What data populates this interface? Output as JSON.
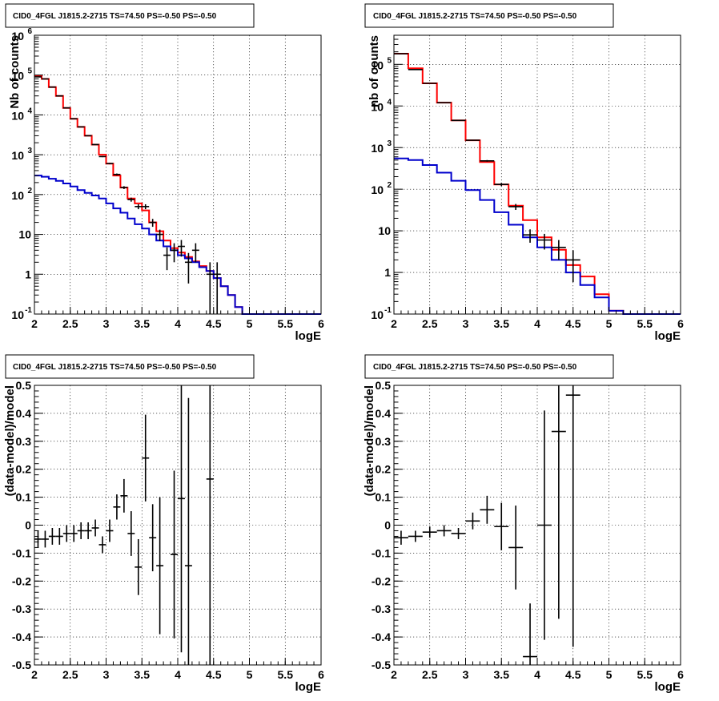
{
  "chart_data": [
    {
      "panel": "top-left",
      "type": "step",
      "title": "CID0_4FGL J1815.2-2715 TS=74.50 PS=-0.50 PS=-0.50",
      "xlabel": "logE",
      "ylabel": "Nb of counts",
      "xlim": [
        2,
        6
      ],
      "ylim": [
        0.1,
        1000000
      ],
      "yscale": "log",
      "grid": true,
      "xticks": [
        "2",
        "2.5",
        "3",
        "3.5",
        "4",
        "4.5",
        "5",
        "5.5",
        "6"
      ],
      "yticks": [
        {
          "base": "10",
          "exp": "-1"
        },
        {
          "base": "1",
          "exp": ""
        },
        {
          "base": "10",
          "exp": ""
        },
        {
          "base": "10",
          "exp": "2"
        },
        {
          "base": "10",
          "exp": "3"
        },
        {
          "base": "10",
          "exp": "4"
        },
        {
          "base": "10",
          "exp": "5"
        },
        {
          "base": "10",
          "exp": "6"
        }
      ],
      "bin_edges": [
        2.0,
        2.1,
        2.2,
        2.3,
        2.4,
        2.5,
        2.6,
        2.7,
        2.8,
        2.9,
        3.0,
        3.1,
        3.2,
        3.3,
        3.4,
        3.5,
        3.6,
        3.7,
        3.8,
        3.9,
        4.0,
        4.1,
        4.2,
        4.3,
        4.4,
        4.5,
        4.6,
        4.7,
        4.8,
        4.9,
        5.0,
        5.1,
        5.2,
        5.3,
        5.4,
        5.5,
        5.6,
        5.7,
        5.8,
        5.9,
        6.0
      ],
      "series": [
        {
          "color": "#ff0000",
          "values": [
            95000,
            80000,
            50000,
            30000,
            15000,
            8000,
            5000,
            3000,
            1800,
            1000,
            600,
            300,
            150,
            80,
            60,
            40,
            20,
            12,
            7,
            4.5,
            3.5,
            2.7,
            2.1,
            1.6,
            1.2,
            0.8,
            0.5,
            0.3,
            0.15,
            0.1,
            0.1,
            0.1,
            0.1,
            0.1,
            0.1,
            0.1,
            0.1,
            0.1,
            0.1,
            0.1
          ]
        },
        {
          "color": "#0000cc",
          "values": [
            300,
            280,
            250,
            220,
            190,
            160,
            130,
            110,
            95,
            80,
            60,
            45,
            35,
            25,
            18,
            14,
            10,
            7,
            5,
            4,
            3,
            2.5,
            2,
            1.5,
            1.2,
            0.8,
            0.5,
            0.3,
            0.15,
            0.1,
            0.1,
            0.1,
            0.1,
            0.1,
            0.1,
            0.1,
            0.1,
            0.1,
            0.1,
            0.1
          ]
        }
      ],
      "points": [
        {
          "x": 2.05,
          "y": 90000
        },
        {
          "x": 2.15,
          "y": 80000
        },
        {
          "x": 2.25,
          "y": 50000
        },
        {
          "x": 2.35,
          "y": 30000
        },
        {
          "x": 2.45,
          "y": 15000
        },
        {
          "x": 2.55,
          "y": 8000
        },
        {
          "x": 2.65,
          "y": 5000
        },
        {
          "x": 2.75,
          "y": 3000
        },
        {
          "x": 2.85,
          "y": 1800
        },
        {
          "x": 2.95,
          "y": 900
        },
        {
          "x": 3.05,
          "y": 600
        },
        {
          "x": 3.15,
          "y": 320
        },
        {
          "x": 3.25,
          "y": 150
        },
        {
          "x": 3.35,
          "y": 75
        },
        {
          "x": 3.45,
          "y": 50
        },
        {
          "x": 3.55,
          "y": 50
        },
        {
          "x": 3.65,
          "y": 20
        },
        {
          "x": 3.75,
          "y": 10
        },
        {
          "x": 3.85,
          "y": 3
        },
        {
          "x": 3.95,
          "y": 4
        },
        {
          "x": 4.05,
          "y": 5
        },
        {
          "x": 4.15,
          "y": 2
        },
        {
          "x": 4.25,
          "y": 4
        },
        {
          "x": 4.45,
          "y": 1
        },
        {
          "x": 4.55,
          "y": 1
        }
      ]
    },
    {
      "panel": "top-right",
      "type": "step",
      "title": "CID0_4FGL J1815.2-2715 TS=74.50 PS=-0.50 PS=-0.50",
      "xlabel": "logE",
      "ylabel": "nb of counts",
      "xlim": [
        2,
        6
      ],
      "ylim": [
        0.1,
        500000
      ],
      "yscale": "log",
      "grid": true,
      "xticks": [
        "2",
        "2.5",
        "3",
        "3.5",
        "4",
        "4.5",
        "5",
        "5.5",
        "6"
      ],
      "yticks": [
        {
          "base": "10",
          "exp": "-1"
        },
        {
          "base": "1",
          "exp": ""
        },
        {
          "base": "10",
          "exp": ""
        },
        {
          "base": "10",
          "exp": "2"
        },
        {
          "base": "10",
          "exp": "3"
        },
        {
          "base": "10",
          "exp": "4"
        },
        {
          "base": "10",
          "exp": "5"
        }
      ],
      "bin_edges": [
        2.0,
        2.2,
        2.4,
        2.6,
        2.8,
        3.0,
        3.2,
        3.4,
        3.6,
        3.8,
        4.0,
        4.2,
        4.4,
        4.6,
        4.8,
        5.0,
        5.2,
        5.4,
        5.6,
        5.8,
        6.0
      ],
      "series": [
        {
          "color": "#ff0000",
          "values": [
            180000,
            80000,
            35000,
            12000,
            4500,
            1500,
            450,
            130,
            40,
            18,
            7,
            3.5,
            1.5,
            0.8,
            0.3,
            0.12,
            0.1,
            0.1,
            0.1,
            0.1
          ]
        },
        {
          "color": "#0000cc",
          "values": [
            550,
            500,
            380,
            250,
            160,
            95,
            55,
            28,
            14,
            7,
            4,
            2,
            1,
            0.5,
            0.25,
            0.12,
            0.1,
            0.1,
            0.1,
            0.1
          ]
        }
      ],
      "points": [
        {
          "x": 2.1,
          "y": 180000
        },
        {
          "x": 2.3,
          "y": 75000
        },
        {
          "x": 2.5,
          "y": 35000
        },
        {
          "x": 2.7,
          "y": 12000
        },
        {
          "x": 2.9,
          "y": 4500
        },
        {
          "x": 3.1,
          "y": 1500
        },
        {
          "x": 3.3,
          "y": 480
        },
        {
          "x": 3.5,
          "y": 130
        },
        {
          "x": 3.7,
          "y": 38
        },
        {
          "x": 3.9,
          "y": 8
        },
        {
          "x": 4.1,
          "y": 6
        },
        {
          "x": 4.3,
          "y": 4
        },
        {
          "x": 4.5,
          "y": 2
        }
      ]
    },
    {
      "panel": "bottom-left",
      "type": "errorbar",
      "title": "CID0_4FGL J1815.2-2715 TS=74.50 PS=-0.50 PS=-0.50",
      "xlabel": "logE",
      "ylabel": "(data-model)/model",
      "xlim": [
        2,
        6
      ],
      "ylim": [
        -0.5,
        0.5
      ],
      "grid": true,
      "xticks": [
        "2",
        "2.5",
        "3",
        "3.5",
        "4",
        "4.5",
        "5",
        "5.5",
        "6"
      ],
      "yticks": [
        "-0.5",
        "-0.4",
        "-0.3",
        "-0.2",
        "-0.1",
        "0",
        "0.1",
        "0.2",
        "0.3",
        "0.4",
        "0.5"
      ],
      "points": [
        {
          "x": 2.05,
          "y": -0.05,
          "err": 0.03
        },
        {
          "x": 2.15,
          "y": -0.05,
          "err": 0.03
        },
        {
          "x": 2.25,
          "y": -0.04,
          "err": 0.03
        },
        {
          "x": 2.35,
          "y": -0.04,
          "err": 0.03
        },
        {
          "x": 2.45,
          "y": -0.03,
          "err": 0.03
        },
        {
          "x": 2.55,
          "y": -0.03,
          "err": 0.03
        },
        {
          "x": 2.65,
          "y": -0.02,
          "err": 0.03
        },
        {
          "x": 2.75,
          "y": -0.02,
          "err": 0.03
        },
        {
          "x": 2.85,
          "y": -0.01,
          "err": 0.03
        },
        {
          "x": 2.95,
          "y": -0.07,
          "err": 0.03
        },
        {
          "x": 3.05,
          "y": -0.02,
          "err": 0.04
        },
        {
          "x": 3.15,
          "y": 0.065,
          "err": 0.045
        },
        {
          "x": 3.25,
          "y": 0.105,
          "err": 0.06
        },
        {
          "x": 3.35,
          "y": -0.03,
          "err": 0.08
        },
        {
          "x": 3.45,
          "y": -0.15,
          "err": 0.1
        },
        {
          "x": 3.55,
          "y": 0.24,
          "err": 0.155
        },
        {
          "x": 3.65,
          "y": -0.045,
          "err": 0.12
        },
        {
          "x": 3.75,
          "y": -0.145,
          "err": 0.245
        },
        {
          "x": 3.95,
          "y": -0.105,
          "err": 0.3
        },
        {
          "x": 4.05,
          "y": 0.095,
          "err": 0.55
        },
        {
          "x": 4.15,
          "y": -0.145,
          "err": 0.6
        },
        {
          "x": 4.45,
          "y": 0.165,
          "err": 0.7
        }
      ]
    },
    {
      "panel": "bottom-right",
      "type": "errorbar",
      "title": "CID0_4FGL J1815.2-2715 TS=74.50 PS=-0.50 PS=-0.50",
      "xlabel": "logE",
      "ylabel": "(data-model)/model",
      "xlim": [
        2,
        6
      ],
      "ylim": [
        -0.5,
        0.5
      ],
      "grid": true,
      "xticks": [
        "2",
        "2.5",
        "3",
        "3.5",
        "4",
        "4.5",
        "5",
        "5.5",
        "6"
      ],
      "yticks": [
        "-0.5",
        "-0.4",
        "-0.3",
        "-0.2",
        "-0.1",
        "0",
        "0.1",
        "0.2",
        "0.3",
        "0.4",
        "0.5"
      ],
      "points": [
        {
          "x": 2.1,
          "y": -0.045,
          "err": 0.025
        },
        {
          "x": 2.3,
          "y": -0.04,
          "err": 0.02
        },
        {
          "x": 2.5,
          "y": -0.025,
          "err": 0.02
        },
        {
          "x": 2.7,
          "y": -0.02,
          "err": 0.02
        },
        {
          "x": 2.9,
          "y": -0.03,
          "err": 0.02
        },
        {
          "x": 3.1,
          "y": 0.015,
          "err": 0.03
        },
        {
          "x": 3.3,
          "y": 0.055,
          "err": 0.05
        },
        {
          "x": 3.5,
          "y": -0.005,
          "err": 0.085
        },
        {
          "x": 3.7,
          "y": -0.08,
          "err": 0.15
        },
        {
          "x": 3.9,
          "y": -0.47,
          "err": 0.19
        },
        {
          "x": 4.1,
          "y": 0.0,
          "err": 0.41
        },
        {
          "x": 4.3,
          "y": 0.335,
          "err": 0.67
        },
        {
          "x": 4.5,
          "y": 0.465,
          "err": 0.9
        }
      ]
    }
  ]
}
